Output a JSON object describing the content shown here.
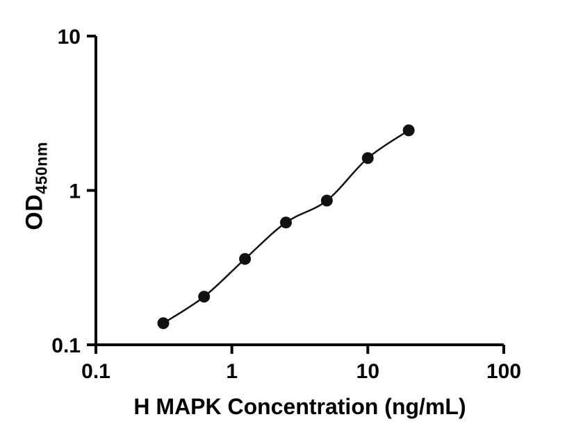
{
  "chart_data": {
    "type": "scatter",
    "title": "",
    "xlabel": "H MAPK Concentration (ng/mL)",
    "ylabel": "OD450nm",
    "ylabel_main": "OD",
    "ylabel_sub": "450nm",
    "x": [
      0.313,
      0.625,
      1.25,
      2.5,
      5,
      10,
      20
    ],
    "y": [
      0.138,
      0.205,
      0.36,
      0.62,
      0.86,
      1.62,
      2.45
    ],
    "x_scale": "log",
    "y_scale": "log",
    "xlim": [
      0.1,
      100
    ],
    "ylim": [
      0.1,
      10
    ],
    "x_ticks": [
      0.1,
      1,
      10,
      100
    ],
    "x_tick_labels": [
      "0.1",
      "1",
      "10",
      "100"
    ],
    "y_ticks": [
      0.1,
      1,
      10
    ],
    "y_tick_labels": [
      "0.1",
      "1",
      "10"
    ],
    "grid": false,
    "legend": "none",
    "curve_style": "smooth line through points",
    "marker": "filled circle",
    "marker_color": "#111111",
    "line_color": "#111111"
  },
  "colors": {
    "background": "#ffffff",
    "axis": "#000000",
    "text": "#000000"
  }
}
